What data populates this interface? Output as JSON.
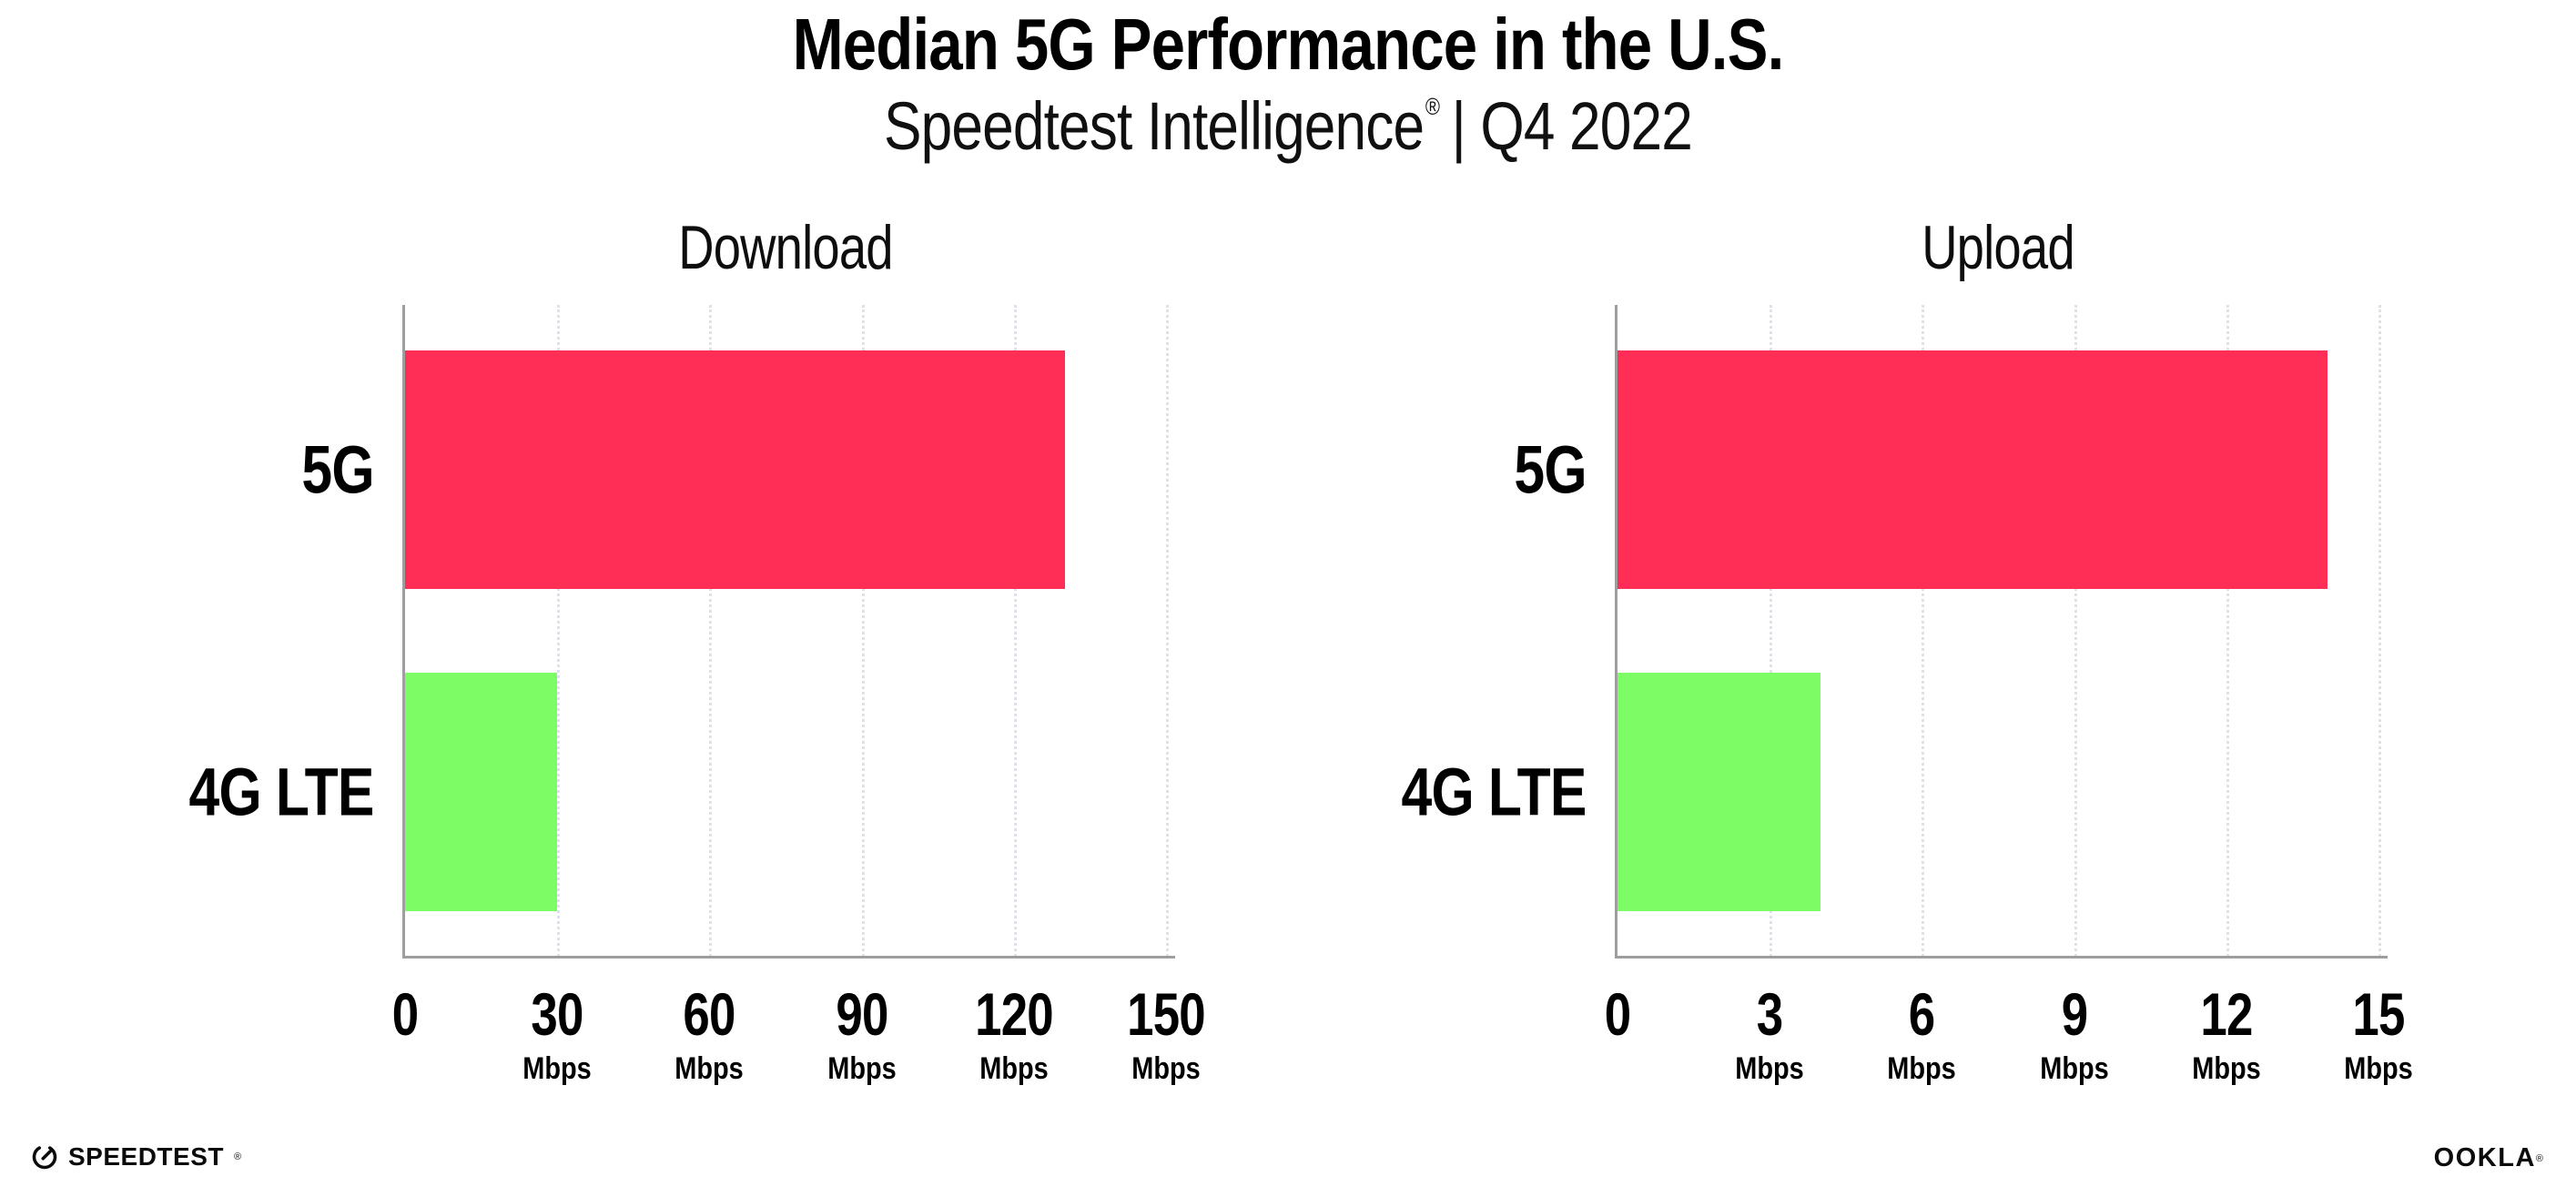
{
  "title": "Median 5G Performance in the U.S.",
  "subtitle": {
    "brand": "Speedtest Intelligence",
    "reg": "®",
    "rest": "| Q4 2022"
  },
  "colors": {
    "bar_5g": "#FF2E56",
    "bar_4g_lte": "#7DFC66",
    "axis_line": "#9E9E9E",
    "gridline": "#DEE1E9",
    "text": "#000000"
  },
  "chart_data": [
    {
      "type": "bar",
      "orientation": "horizontal",
      "title": "Download",
      "categories": [
        "5G",
        "4G LTE"
      ],
      "values": [
        130,
        30
      ],
      "unit": "Mbps",
      "xlim": [
        0,
        150
      ],
      "xticks": [
        0,
        30,
        60,
        90,
        120,
        150
      ],
      "bar_colors": [
        "#FF2E56",
        "#7DFC66"
      ],
      "grid": "dotted-vertical",
      "legend": "none"
    },
    {
      "type": "bar",
      "orientation": "horizontal",
      "title": "Upload",
      "categories": [
        "5G",
        "4G LTE"
      ],
      "values": [
        14,
        4
      ],
      "unit": "Mbps",
      "xlim": [
        0,
        15
      ],
      "xticks": [
        0,
        3,
        6,
        9,
        12,
        15
      ],
      "bar_colors": [
        "#FF2E56",
        "#7DFC66"
      ],
      "grid": "dotted-vertical",
      "legend": "none"
    }
  ],
  "footer": {
    "speedtest_label": "SPEEDTEST",
    "speedtest_reg": "®",
    "ookla_label": "OOKLA",
    "ookla_reg": "®"
  }
}
